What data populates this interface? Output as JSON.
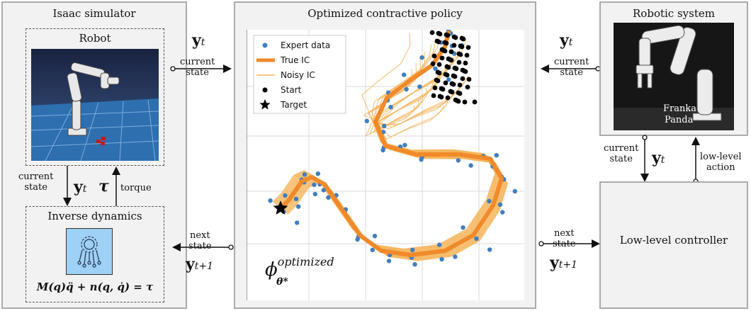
{
  "left_panel": {
    "title": "Isaac simulator",
    "robot_title": "Robot",
    "inverse_title": "Inverse dynamics",
    "equation": "M(q)q̈ + n(q, q̇) = τ",
    "current_state_label": "current\nstate",
    "y_t": "y",
    "y_t_sub": "t",
    "tau": "τ",
    "torque_label": "torque"
  },
  "center_panel": {
    "title": "Optimized contractive policy",
    "policy_symbol": "ϕ",
    "policy_sup": "optimized",
    "policy_sub": "θ*"
  },
  "right_panel": {
    "title": "Robotic system",
    "photo_caption_1": "Franka",
    "photo_caption_2": "Panda",
    "controller_title": "Low-level controller",
    "current_state_label": "current\nstate",
    "low_level_action_label": "low-level\naction"
  },
  "arrows": {
    "left_in_label": "current\nstate",
    "left_out_label": "next\nstate",
    "right_in_label": "current\nstate",
    "right_out_label": "next\nstate",
    "y_t": "y",
    "y_t_sub": "t",
    "y_t1_sub": "t+1"
  },
  "colors": {
    "panel_bg": "#f2f2f2",
    "expert": "#3f7fbf",
    "true_ic": "#f08a2a",
    "noisy_ic": "#f6b55c",
    "start": "#000000",
    "inverse_icon_bg": "#9fd0f5"
  },
  "chart_data": {
    "type": "scatter",
    "legend": [
      "Expert data",
      "True IC",
      "Noisy IC",
      "Start",
      "Target"
    ],
    "legend_placement": "top-left",
    "grid": true
  }
}
